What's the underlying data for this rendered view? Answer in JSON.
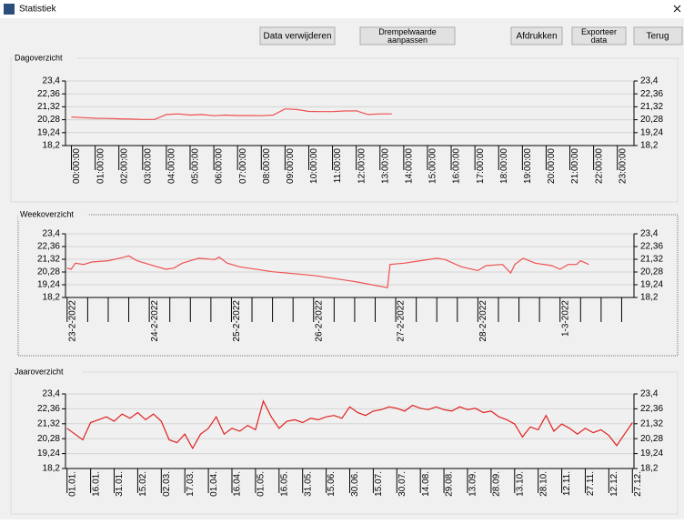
{
  "window": {
    "title": "Statistiek"
  },
  "buttons": [
    "Data verwijderen",
    "Drempelwaarde aanpassen",
    "Afdrukken",
    "Exporteer data",
    "Terug"
  ],
  "chart_data": [
    {
      "type": "line",
      "title": "Dagoverzicht",
      "xlim": [
        -0.25,
        23.7
      ],
      "xticks": [
        {
          "value": 0,
          "label": "00:00:00"
        },
        {
          "value": 1,
          "label": "01:00:00"
        },
        {
          "value": 2,
          "label": "02:00:00"
        },
        {
          "value": 3,
          "label": "03:00:00"
        },
        {
          "value": 4,
          "label": "04:00:00"
        },
        {
          "value": 5,
          "label": "05:00:00"
        },
        {
          "value": 6,
          "label": "06:00:00"
        },
        {
          "value": 7,
          "label": "07:00:00"
        },
        {
          "value": 8,
          "label": "08:00:00"
        },
        {
          "value": 9,
          "label": "09:00:00"
        },
        {
          "value": 10,
          "label": "10:00:00"
        },
        {
          "value": 11,
          "label": "11:00:00"
        },
        {
          "value": 12,
          "label": "12:00:00"
        },
        {
          "value": 13,
          "label": "13:00:00"
        },
        {
          "value": 14,
          "label": "14:00:00"
        },
        {
          "value": 15,
          "label": "15:00:00"
        },
        {
          "value": 16,
          "label": "16:00:00"
        },
        {
          "value": 17,
          "label": "17:00:00"
        },
        {
          "value": 18,
          "label": "18:00:00"
        },
        {
          "value": 19,
          "label": "19:00:00"
        },
        {
          "value": 20,
          "label": "20:00:00"
        },
        {
          "value": 21,
          "label": "21:00:00"
        },
        {
          "value": 22,
          "label": "22:00:00"
        },
        {
          "value": 23,
          "label": "23:00:00"
        }
      ],
      "minor_xticks": [],
      "ylim": [
        18.2,
        23.4
      ],
      "yticks": [
        {
          "value": 18.2,
          "label": "18,2"
        },
        {
          "value": 19.24,
          "label": "19,24"
        },
        {
          "value": 20.28,
          "label": "20,28"
        },
        {
          "value": 21.32,
          "label": "21,32"
        },
        {
          "value": 22.36,
          "label": "22,36"
        },
        {
          "value": 23.4,
          "label": "23,4"
        }
      ],
      "grid": true,
      "series": [
        {
          "color": "#f05050",
          "x": [
            0,
            0.5,
            1,
            1.5,
            2,
            2.5,
            3,
            3.5,
            4,
            4.5,
            5,
            5.5,
            6,
            6.5,
            7,
            7.5,
            8,
            8.5,
            9,
            9.5,
            10,
            10.5,
            11,
            11.5,
            12,
            12.5,
            13,
            13.5
          ],
          "values": [
            20.5,
            20.45,
            20.4,
            20.38,
            20.35,
            20.33,
            20.3,
            20.3,
            20.7,
            20.75,
            20.65,
            20.7,
            20.6,
            20.65,
            20.62,
            20.62,
            20.6,
            20.65,
            21.15,
            21.1,
            20.95,
            20.93,
            20.93,
            20.98,
            21.0,
            20.7,
            20.75,
            20.75
          ]
        }
      ]
    },
    {
      "type": "line",
      "title": "Weekoverzicht",
      "xlim": [
        -0.02,
        6.9
      ],
      "xticks": [
        {
          "value": 0,
          "label": "23-2-2022"
        },
        {
          "value": 1,
          "label": "24-2-2022"
        },
        {
          "value": 2,
          "label": "25-2-2022"
        },
        {
          "value": 3,
          "label": "26-2-2022"
        },
        {
          "value": 4,
          "label": "27-2-2022"
        },
        {
          "value": 5,
          "label": "28-2-2022"
        },
        {
          "value": 6,
          "label": "1-3-2022"
        }
      ],
      "minor_xticks": [
        0.25,
        0.5,
        0.75,
        1.25,
        1.5,
        1.75,
        2.25,
        2.5,
        2.75,
        3.25,
        3.5,
        3.75,
        4.25,
        4.5,
        4.75,
        5.25,
        5.5,
        5.75,
        6.25,
        6.5,
        6.75
      ],
      "ylim": [
        18.2,
        23.4
      ],
      "yticks": [
        {
          "value": 18.2,
          "label": "18,2"
        },
        {
          "value": 19.24,
          "label": "19,24"
        },
        {
          "value": 20.28,
          "label": "20,28"
        },
        {
          "value": 21.32,
          "label": "21,32"
        },
        {
          "value": 22.36,
          "label": "22,36"
        },
        {
          "value": 23.4,
          "label": "23,4"
        }
      ],
      "grid": true,
      "series": [
        {
          "color": "#f05050",
          "x": [
            0,
            0.05,
            0.1,
            0.2,
            0.3,
            0.5,
            0.7,
            0.75,
            0.85,
            1.0,
            1.2,
            1.3,
            1.4,
            1.5,
            1.6,
            1.8,
            1.85,
            1.95,
            2.1,
            2.5,
            3.0,
            3.5,
            3.9,
            3.93,
            4.1,
            4.3,
            4.5,
            4.6,
            4.8,
            5.0,
            5.1,
            5.3,
            5.4,
            5.45,
            5.55,
            5.7,
            5.9,
            6.0,
            6.1,
            6.2,
            6.25,
            6.35
          ],
          "values": [
            20.6,
            20.5,
            21.0,
            20.9,
            21.1,
            21.2,
            21.5,
            21.6,
            21.2,
            20.9,
            20.5,
            20.6,
            21.0,
            21.2,
            21.4,
            21.3,
            21.5,
            21.0,
            20.7,
            20.3,
            20.0,
            19.5,
            19.0,
            20.9,
            21.0,
            21.2,
            21.4,
            21.3,
            20.7,
            20.4,
            20.8,
            20.9,
            20.2,
            20.9,
            21.4,
            21.0,
            20.8,
            20.5,
            20.9,
            20.9,
            21.2,
            20.9
          ]
        }
      ]
    },
    {
      "type": "line",
      "title": "Jaaroverzicht",
      "xlim": [
        -1,
        361
      ],
      "xticks": [
        {
          "value": 0,
          "label": "01.01."
        },
        {
          "value": 15,
          "label": "16.01."
        },
        {
          "value": 30,
          "label": "31.01."
        },
        {
          "value": 45,
          "label": "15.02."
        },
        {
          "value": 60,
          "label": "02.03."
        },
        {
          "value": 75,
          "label": "17.03."
        },
        {
          "value": 90,
          "label": "01.04."
        },
        {
          "value": 105,
          "label": "16.04."
        },
        {
          "value": 120,
          "label": "01.05."
        },
        {
          "value": 135,
          "label": "16.05."
        },
        {
          "value": 150,
          "label": "31.05."
        },
        {
          "value": 165,
          "label": "15.06."
        },
        {
          "value": 180,
          "label": "30.06."
        },
        {
          "value": 195,
          "label": "15.07."
        },
        {
          "value": 210,
          "label": "30.07."
        },
        {
          "value": 225,
          "label": "14.08."
        },
        {
          "value": 240,
          "label": "29.08."
        },
        {
          "value": 255,
          "label": "13.09."
        },
        {
          "value": 270,
          "label": "28.09."
        },
        {
          "value": 285,
          "label": "13.10."
        },
        {
          "value": 300,
          "label": "28.10."
        },
        {
          "value": 315,
          "label": "12.11."
        },
        {
          "value": 330,
          "label": "27.11."
        },
        {
          "value": 345,
          "label": "12.12."
        },
        {
          "value": 360,
          "label": "27.12."
        }
      ],
      "minor_xticks": [],
      "ylim": [
        18.2,
        23.4
      ],
      "yticks": [
        {
          "value": 18.2,
          "label": "18,2"
        },
        {
          "value": 19.24,
          "label": "19,24"
        },
        {
          "value": 20.28,
          "label": "20,28"
        },
        {
          "value": 21.32,
          "label": "21,32"
        },
        {
          "value": 22.36,
          "label": "22,36"
        },
        {
          "value": 23.4,
          "label": "23,4"
        }
      ],
      "grid": true,
      "series": [
        {
          "color": "#e02020",
          "x": [
            0,
            5,
            10,
            15,
            20,
            25,
            30,
            35,
            40,
            45,
            50,
            55,
            60,
            65,
            70,
            75,
            80,
            85,
            90,
            95,
            100,
            105,
            110,
            115,
            120,
            125,
            130,
            135,
            140,
            145,
            150,
            155,
            160,
            165,
            170,
            175,
            180,
            185,
            190,
            195,
            200,
            205,
            210,
            215,
            220,
            225,
            230,
            235,
            240,
            245,
            250,
            255,
            260,
            265,
            270,
            275,
            280,
            285,
            290,
            295,
            300,
            305,
            310,
            315,
            320,
            325,
            330,
            335,
            340,
            345,
            350,
            355,
            360
          ],
          "values": [
            21.0,
            20.6,
            20.2,
            21.4,
            21.6,
            21.8,
            21.5,
            22.0,
            21.7,
            22.1,
            21.6,
            22.0,
            21.5,
            20.2,
            20.0,
            20.6,
            19.6,
            20.6,
            21.0,
            21.8,
            20.6,
            21.0,
            20.8,
            21.2,
            20.9,
            22.9,
            21.8,
            21.0,
            21.5,
            21.6,
            21.4,
            21.7,
            21.6,
            21.8,
            21.9,
            21.7,
            22.5,
            22.1,
            21.9,
            22.2,
            22.3,
            22.5,
            22.4,
            22.2,
            22.6,
            22.4,
            22.3,
            22.5,
            22.3,
            22.2,
            22.5,
            22.3,
            22.4,
            22.1,
            22.2,
            21.8,
            21.6,
            21.3,
            20.4,
            21.1,
            20.9,
            21.9,
            20.8,
            21.3,
            21.0,
            20.6,
            21.0,
            20.7,
            20.9,
            20.5,
            19.8,
            20.6,
            21.4
          ]
        }
      ]
    }
  ]
}
